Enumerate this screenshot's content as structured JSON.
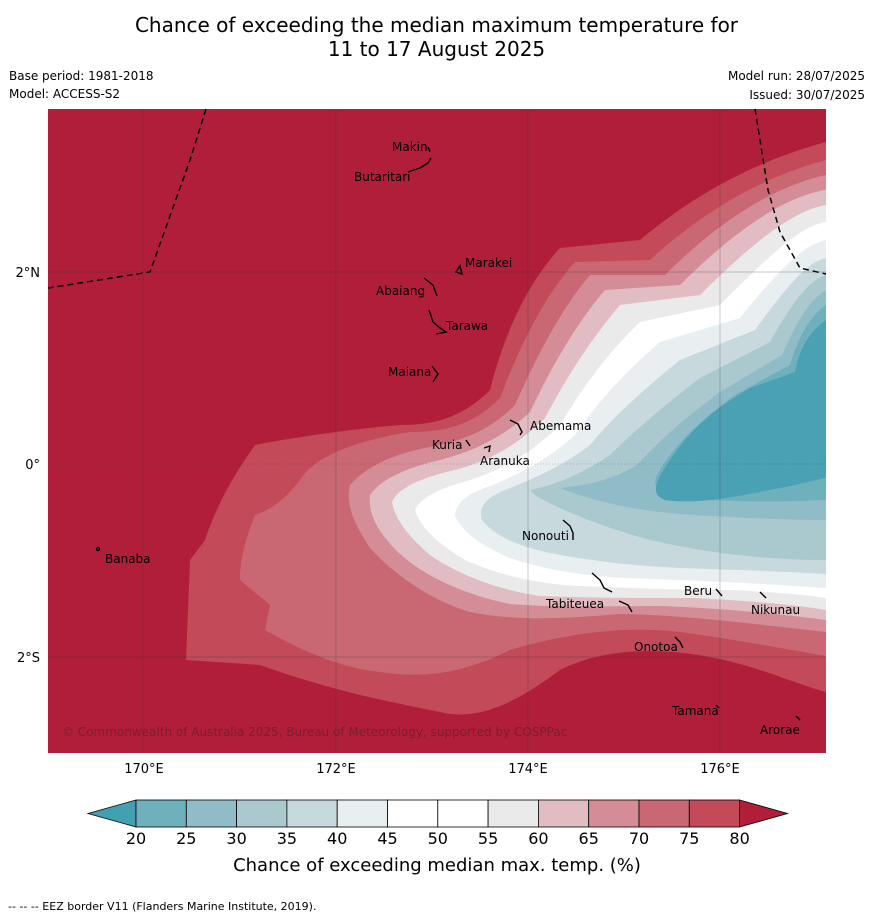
{
  "title_line1": "Chance of exceeding the median maximum temperature for",
  "title_line2": "11 to 17 August 2025",
  "base_period": "Base period: 1981-2018",
  "model": "Model: ACCESS-S2",
  "model_run": "Model run: 28/07/2025",
  "issued": "Issued: 30/07/2025",
  "copyright": "© Commonwealth of Australia 2025, Bureau of Meteorology, supported by COSPPac",
  "lat_ticks": [
    "2°N",
    "0°",
    "2°S"
  ],
  "lon_ticks": [
    "170°E",
    "172°E",
    "174°E",
    "176°E"
  ],
  "islands": [
    "Makin",
    "Butaritari",
    "Marakei",
    "Abaiang",
    "Tarawa",
    "Maiana",
    "Abemama",
    "Kuria",
    "Aranuka",
    "Banaba",
    "Nonouti",
    "Tabiteuea",
    "Beru",
    "Nikunau",
    "Onotoa",
    "Tamana",
    "Arorae"
  ],
  "colorbar": {
    "ticks": [
      "20",
      "25",
      "30",
      "35",
      "40",
      "45",
      "50",
      "55",
      "60",
      "65",
      "70",
      "75",
      "80"
    ],
    "colors": [
      "#43a0b3",
      "#6fb0bd",
      "#8fbcc6",
      "#a9c9ce",
      "#c8d9de",
      "#e9eff1",
      "#ffffff",
      "#ffffff",
      "#ebeaea",
      "#e1bcc3",
      "#d48d96",
      "#c96872",
      "#c24a59",
      "#b11e39"
    ],
    "label": "Chance of exceeding median max. temp. (%)"
  },
  "footnote": "--  --  -- EEZ border V11 (Flanders Marine Institute, 2019)."
}
